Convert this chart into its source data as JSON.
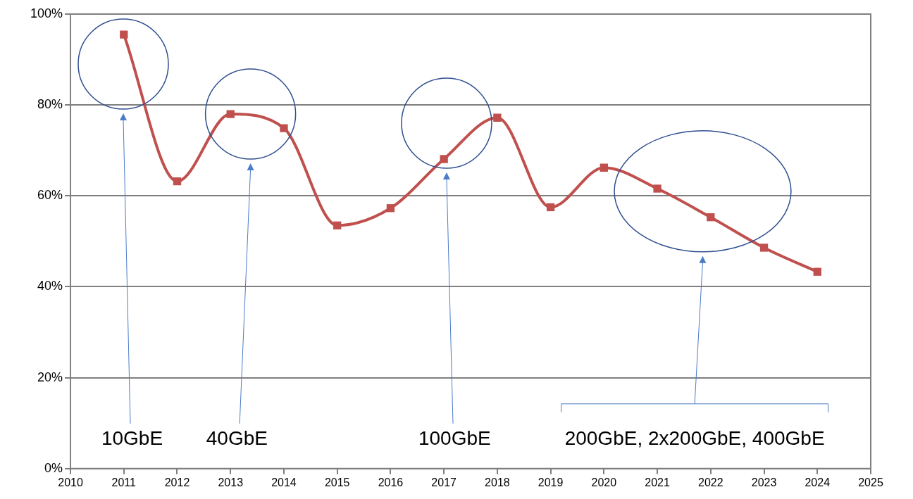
{
  "chart_data": {
    "type": "line",
    "x": [
      2011,
      2012,
      2013,
      2014,
      2015,
      2016,
      2017,
      2018,
      2019,
      2020,
      2021,
      2022,
      2023,
      2024
    ],
    "series": [
      {
        "color": "#c0504d",
        "values": [
          95.5,
          63.2,
          78.0,
          74.9,
          53.5,
          57.3,
          68.1,
          77.2,
          57.5,
          66.2,
          61.6,
          55.3,
          48.6,
          43.3
        ]
      }
    ],
    "xlim": [
      2010,
      2025
    ],
    "xticks": [
      2010,
      2011,
      2012,
      2013,
      2014,
      2015,
      2016,
      2017,
      2018,
      2019,
      2020,
      2021,
      2022,
      2023,
      2024,
      2025
    ],
    "ylim": [
      0,
      100
    ],
    "yticks": [
      {
        "value": 0,
        "label": "0%"
      },
      {
        "value": 20,
        "label": "20%"
      },
      {
        "value": 40,
        "label": "40%"
      },
      {
        "value": 60,
        "label": "60%"
      },
      {
        "value": 80,
        "label": "80%"
      },
      {
        "value": 100,
        "label": "100%"
      }
    ],
    "grid": "y",
    "legend": false,
    "marker": "square",
    "line_style": "solid",
    "annotations": [
      "10GbE",
      "40GbE",
      "100GbE",
      "200GbE, 2x200GbE, 400GbE"
    ]
  }
}
